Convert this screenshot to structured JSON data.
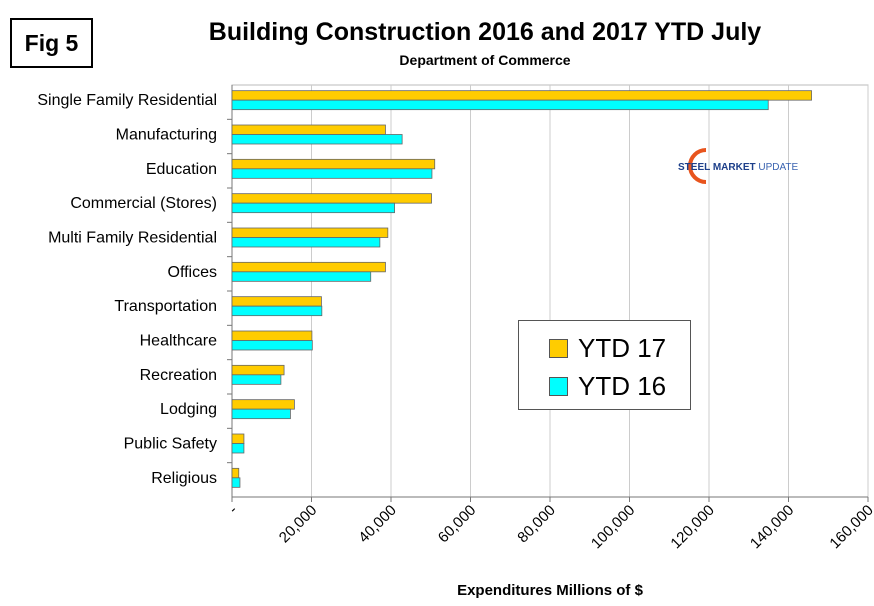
{
  "fig_label": "Fig 5",
  "logo_text": "STEEL MARKET UPDATE",
  "chart_data": {
    "type": "bar",
    "orientation": "horizontal",
    "title": "Building Construction 2016 and 2017 YTD July",
    "subtitle": "Department of Commerce",
    "xlabel": "Expenditures Millions of $",
    "ylabel": "",
    "xlim": [
      0,
      160000
    ],
    "xticks": [
      "-",
      "20,000",
      "40,000",
      "60,000",
      "80,000",
      "100,000",
      "120,000",
      "140,000",
      "160,000"
    ],
    "grid": true,
    "legend_position": "center-right",
    "categories": [
      "Single Family Residential",
      "Manufacturing",
      "Education",
      "Commercial (Stores)",
      "Multi Family Residential",
      "Offices",
      "Transportation",
      "Healthcare",
      "Recreation",
      "Lodging",
      "Public Safety",
      "Religious"
    ],
    "series": [
      {
        "name": "YTD 17",
        "color": "#ffcc00",
        "values": [
          145800,
          38600,
          51000,
          50200,
          39200,
          38600,
          22500,
          20100,
          13100,
          15700,
          3000,
          1700
        ]
      },
      {
        "name": "YTD 16",
        "color": "#00ffff",
        "values": [
          134900,
          42800,
          50300,
          40900,
          37200,
          34900,
          22600,
          20200,
          12300,
          14700,
          3000,
          2000
        ]
      }
    ]
  }
}
